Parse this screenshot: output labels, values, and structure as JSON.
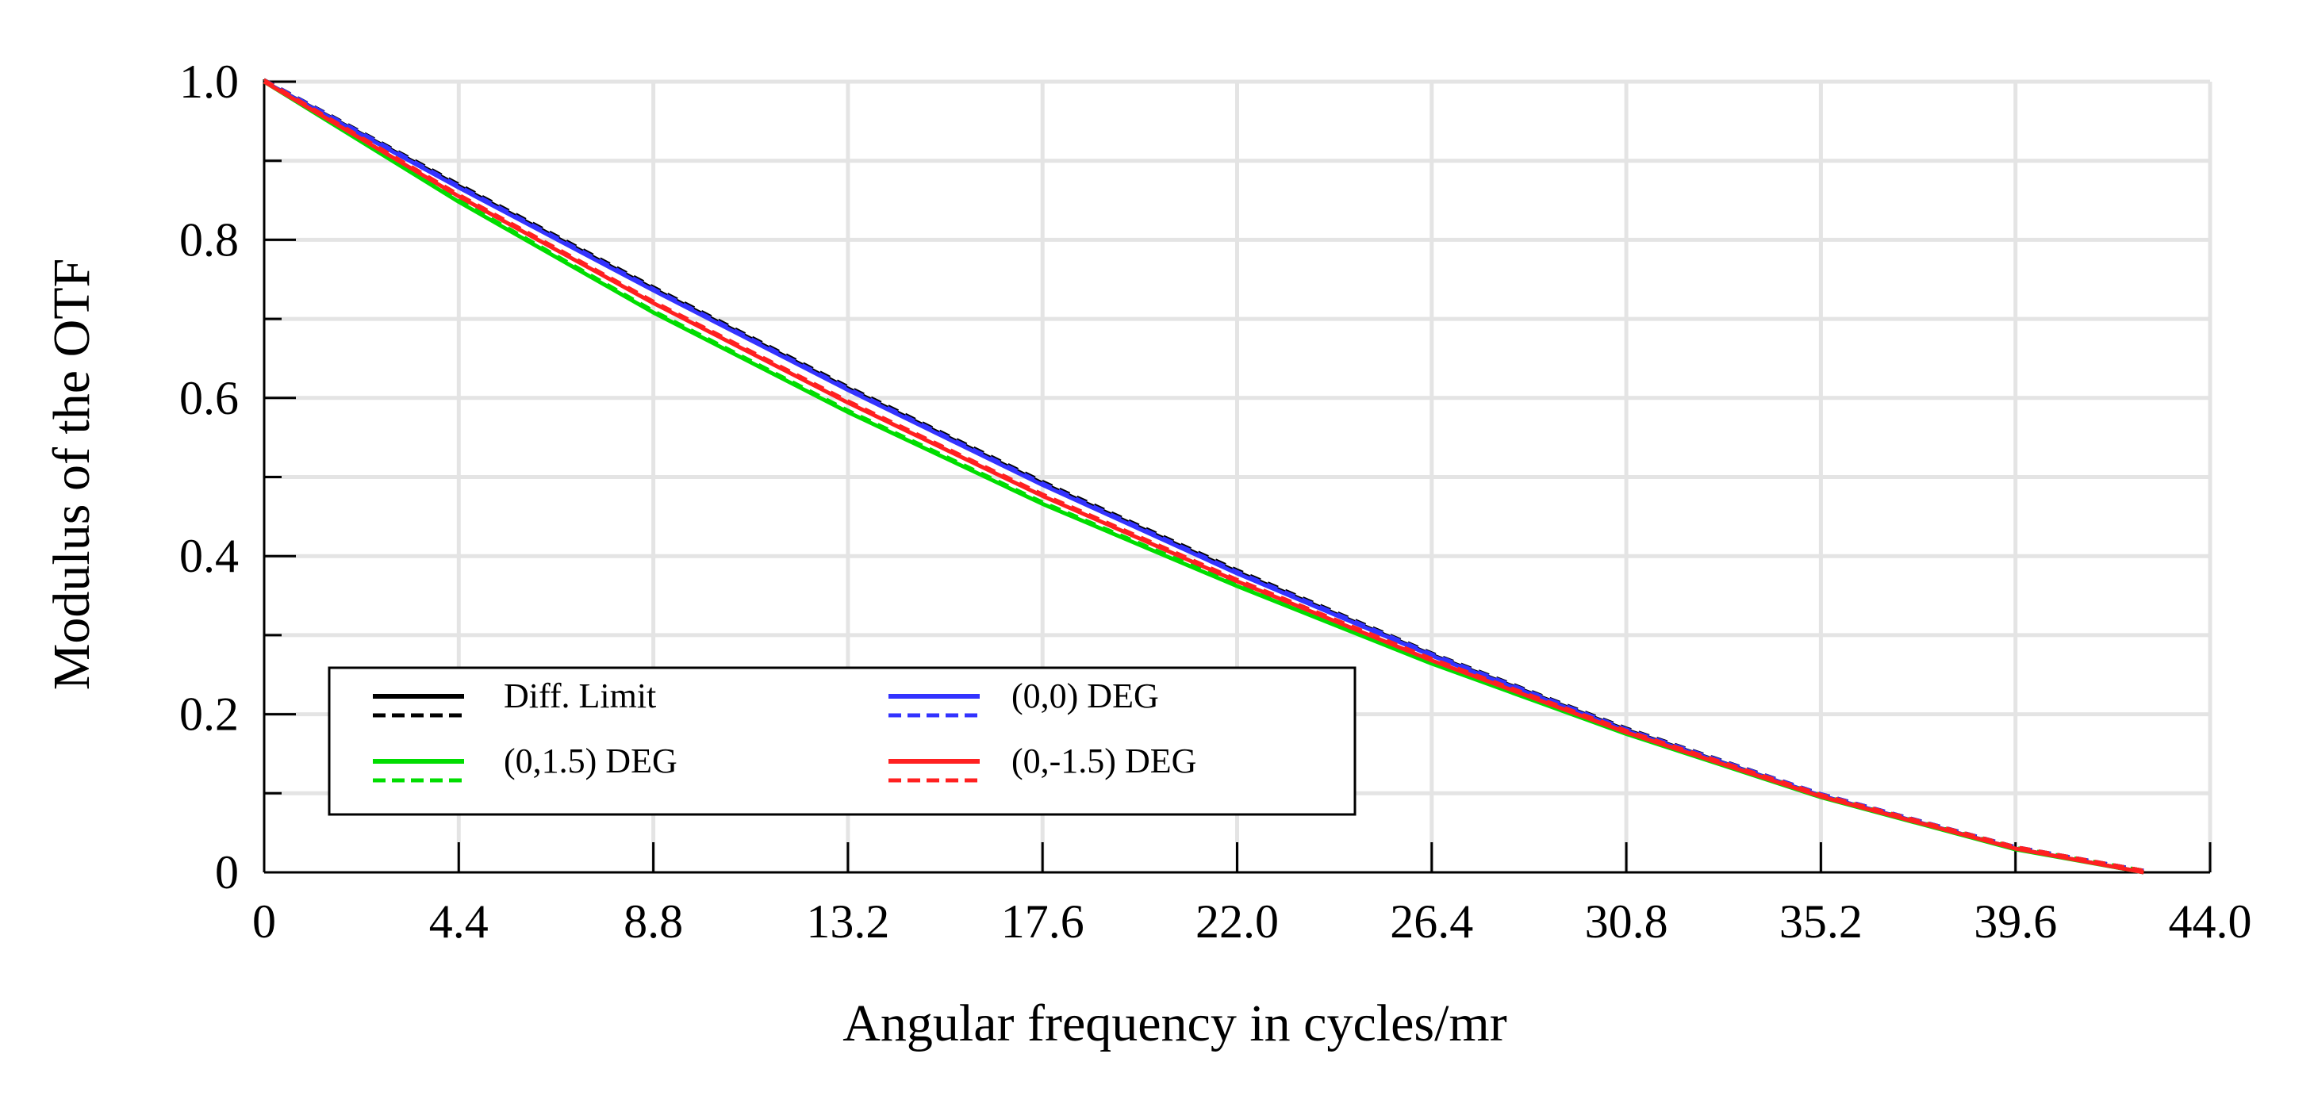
{
  "chart_data": {
    "type": "line",
    "title": "",
    "xlabel": "Angular frequency in cycles/mr",
    "ylabel": "Modulus of the OTF",
    "xlim": [
      0,
      44.0
    ],
    "ylim": [
      0,
      1.0
    ],
    "grid": true,
    "x_ticks": [
      "0",
      "4.4",
      "8.8",
      "13.2",
      "17.6",
      "22.0",
      "26.4",
      "30.8",
      "35.2",
      "39.6",
      "44.0"
    ],
    "y_ticks": [
      "0",
      "0.2",
      "0.4",
      "0.6",
      "0.8",
      "1.0"
    ],
    "legend_position": "bottom-left",
    "x": [
      0,
      4.4,
      8.8,
      13.2,
      17.6,
      22.0,
      26.4,
      30.8,
      35.2,
      39.6,
      42.5
    ],
    "series": [
      {
        "name": "Diff. Limit",
        "color": "#000000",
        "values": [
          1.0,
          0.868,
          0.738,
          0.612,
          0.492,
          0.38,
          0.275,
          0.18,
          0.097,
          0.03,
          0.0
        ]
      },
      {
        "name": "(0,0) DEG",
        "color": "#3333ff",
        "values": [
          1.0,
          0.866,
          0.736,
          0.61,
          0.49,
          0.378,
          0.274,
          0.179,
          0.097,
          0.03,
          0.0
        ]
      },
      {
        "name": "(0,1.5) DEG",
        "color": "#00dd00",
        "values": [
          1.0,
          0.848,
          0.708,
          0.582,
          0.466,
          0.362,
          0.264,
          0.175,
          0.095,
          0.029,
          0.0
        ]
      },
      {
        "name": "(0,-1.5) DEG",
        "color": "#ff2020",
        "values": [
          1.0,
          0.855,
          0.72,
          0.594,
          0.476,
          0.368,
          0.268,
          0.177,
          0.096,
          0.03,
          0.0
        ]
      }
    ]
  }
}
